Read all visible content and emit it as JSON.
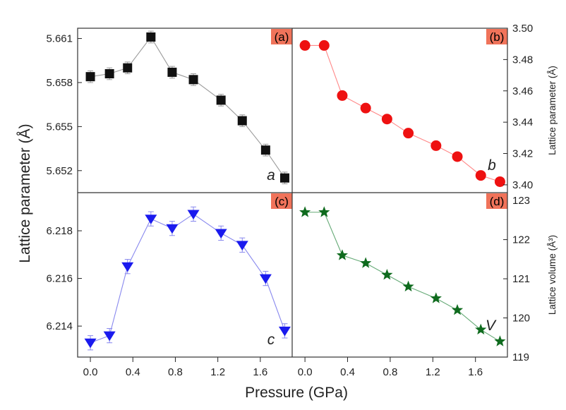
{
  "chart_data": {
    "type": "scatter",
    "xlabel": "Pressure (GPa)",
    "ylabel": "Lattice parameter (Å)",
    "x_ticks": [
      "0.0",
      "0.4",
      "0.8",
      "1.2",
      "1.6"
    ],
    "xlim": [
      -0.12,
      1.9
    ],
    "panels": [
      {
        "id": "a",
        "tag": "(a)",
        "var_label": "a",
        "marker": "square",
        "color": "#111111",
        "line_color": "#999999",
        "ylim": [
          5.6505,
          5.6617
        ],
        "y_ticks": [
          "5.652",
          "5.655",
          "5.658",
          "5.661"
        ],
        "y_tick_values": [
          5.652,
          5.655,
          5.658,
          5.661
        ],
        "x": [
          0.0,
          0.18,
          0.35,
          0.57,
          0.77,
          0.97,
          1.23,
          1.43,
          1.65,
          1.83
        ],
        "y": [
          5.6584,
          5.6586,
          5.659,
          5.6611,
          5.6587,
          5.6582,
          5.6568,
          5.6554,
          5.6534,
          5.6515
        ],
        "err": [
          0.0004,
          0.0004,
          0.0004,
          0.0004,
          0.0004,
          0.0004,
          0.0004,
          0.0004,
          0.0004,
          0.0004
        ]
      },
      {
        "id": "b",
        "tag": "(b)",
        "var_label": "b",
        "marker": "circle",
        "color": "#ee1111",
        "line_color": "#ff8888",
        "ylim": [
          3.395,
          3.5
        ],
        "y_ticks": [
          "3.40",
          "3.42",
          "3.44",
          "3.46",
          "3.48",
          "3.50"
        ],
        "y_tick_values": [
          3.4,
          3.42,
          3.44,
          3.46,
          3.48,
          3.5
        ],
        "ylabel_right": "Lattice parameter (Å)",
        "x": [
          0.0,
          0.18,
          0.35,
          0.57,
          0.77,
          0.97,
          1.23,
          1.43,
          1.65,
          1.83
        ],
        "y": [
          3.489,
          3.489,
          3.457,
          3.449,
          3.442,
          3.433,
          3.425,
          3.418,
          3.406,
          3.402
        ]
      },
      {
        "id": "c",
        "tag": "(c)",
        "var_label": "c",
        "marker": "triangle-down",
        "color": "#1a1aee",
        "line_color": "#8888ee",
        "ylim": [
          6.2127,
          6.2196
        ],
        "y_ticks": [
          "6.214",
          "6.216",
          "6.218"
        ],
        "y_tick_values": [
          6.214,
          6.216,
          6.218
        ],
        "x": [
          0.0,
          0.18,
          0.35,
          0.57,
          0.77,
          0.97,
          1.23,
          1.43,
          1.65,
          1.83
        ],
        "y": [
          6.2133,
          6.2136,
          6.2165,
          6.2185,
          6.2181,
          6.2187,
          6.2179,
          6.2174,
          6.216,
          6.2138
        ],
        "err": [
          0.0003,
          0.0003,
          0.0003,
          0.0003,
          0.0003,
          0.0003,
          0.0003,
          0.0003,
          0.0003,
          0.0003
        ]
      },
      {
        "id": "d",
        "tag": "(d)",
        "var_label": "V",
        "marker": "star",
        "color": "#0f6b1e",
        "line_color": "#66aa77",
        "ylim": [
          119,
          123.2
        ],
        "y_ticks": [
          "119",
          "120",
          "121",
          "122",
          "123"
        ],
        "y_tick_values": [
          119,
          120,
          121,
          122,
          123
        ],
        "ylabel_right": "Lattice volume (Å³)",
        "x": [
          0.0,
          0.18,
          0.35,
          0.57,
          0.77,
          0.97,
          1.23,
          1.43,
          1.65,
          1.83
        ],
        "y": [
          122.7,
          122.7,
          121.6,
          121.4,
          121.1,
          120.8,
          120.5,
          120.2,
          119.7,
          119.4
        ]
      }
    ]
  }
}
